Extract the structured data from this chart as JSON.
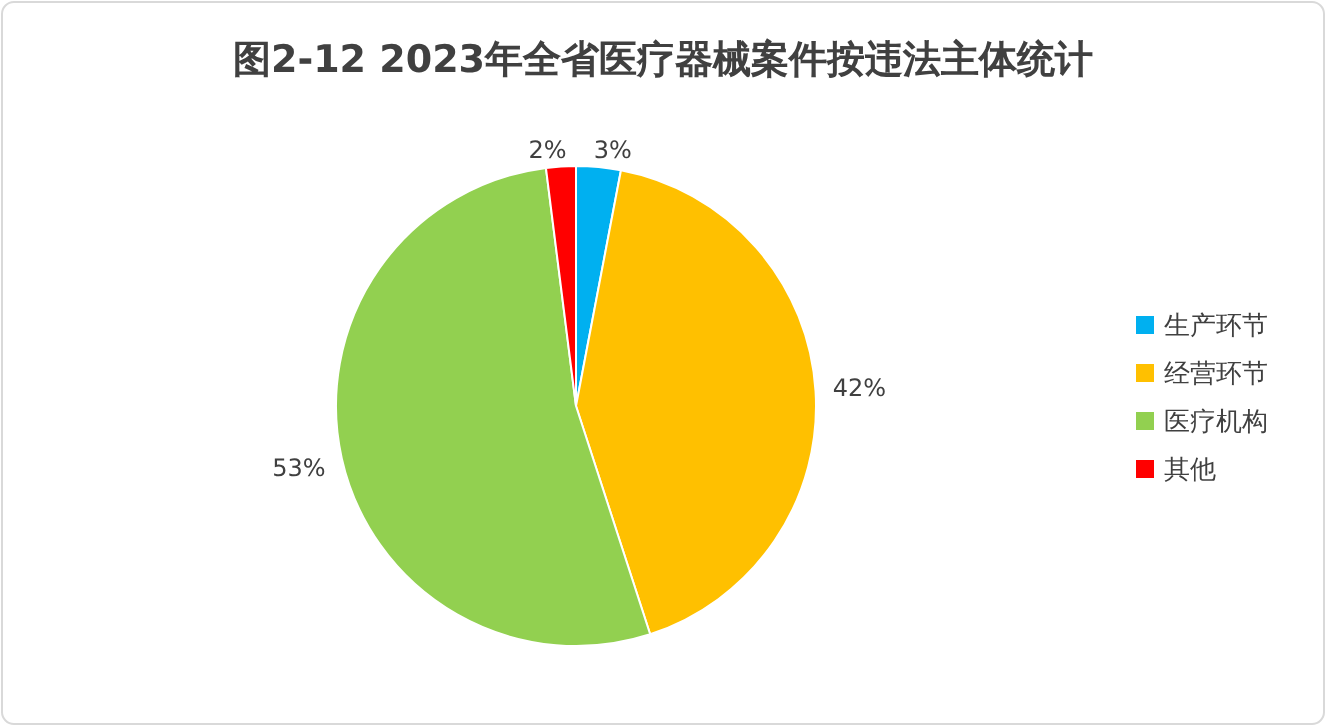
{
  "chart_data": {
    "type": "pie",
    "title": "图2-12  2023年全省医疗器械案件按违法主体统计",
    "categories": [
      "生产环节",
      "经营环节",
      "医疗机构",
      "其他"
    ],
    "values": [
      3,
      42,
      53,
      2
    ],
    "colors": [
      "#00b0f0",
      "#ffc000",
      "#92d050",
      "#ff0000"
    ],
    "value_labels": [
      "3%",
      "42%",
      "53%",
      "2%"
    ],
    "legend": "right"
  }
}
